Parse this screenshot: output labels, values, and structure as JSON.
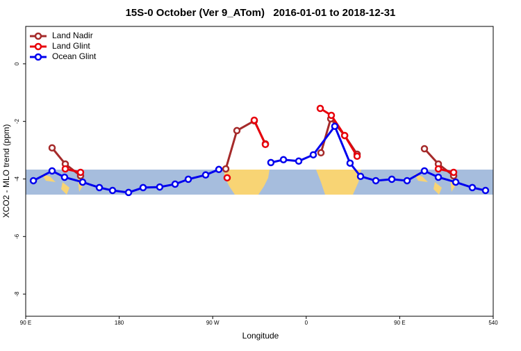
{
  "chart_data": {
    "type": "line",
    "title": "15S-0 October (Ver 9_ATom)   2016-01-01 to 2018-12-31",
    "xlabel": "Longitude",
    "ylabel": "XCO2 - MLO trend (ppm)",
    "xlim": [
      90,
      540
    ],
    "xticks": [
      {
        "value": 90,
        "label": "90 E"
      },
      180,
      {
        "value": 270,
        "label": "90 W"
      },
      {
        "value": 360,
        "label": "0"
      },
      {
        "value": 450,
        "label": "90 E"
      },
      540
    ],
    "ylim": [
      -8.77,
      1.3
    ],
    "yticks": [
      0,
      -2,
      -4,
      -6,
      -8
    ],
    "legend": "upper left",
    "series": [
      {
        "name": "Land Nadir",
        "color": "#a52a2a",
        "x": [
          115.4,
          128.1,
          142.8,
          210,
          282.6,
          293.3,
          310.0,
          320.7,
          350,
          374.2,
          383.6,
          397.0,
          409.0,
          440,
          473.8,
          487.2,
          501.9
        ],
        "values": [
          -2.92,
          -3.48,
          -3.89,
          null,
          -3.65,
          -2.32,
          -1.98,
          -2.78,
          null,
          -3.09,
          -1.91,
          -2.49,
          -3.14,
          null,
          -2.95,
          -3.48,
          -3.89
        ]
      },
      {
        "name": "Land Glint",
        "color": "#e8000b",
        "x": [
          128.1,
          142.8,
          210,
          283.9,
          297,
          310.0,
          320.7,
          350,
          373.5,
          384.2,
          397.0,
          409.0,
          440,
          487.2,
          501.9
        ],
        "values": [
          -3.65,
          -3.77,
          null,
          -3.96,
          null,
          -1.96,
          -2.8,
          null,
          -1.55,
          -1.79,
          -2.49,
          -3.21,
          null,
          -3.65,
          -3.77
        ]
      },
      {
        "name": "Ocean Glint",
        "color": "#0000ee",
        "x": [
          97.4,
          115.4,
          127.4,
          144.8,
          160.9,
          173.6,
          189.0,
          203.0,
          219.0,
          233.8,
          246.5,
          263.2,
          275.9,
          300,
          326.0,
          338.1,
          352.8,
          366.8,
          387.5,
          402.2,
          412.3,
          427.0,
          442.4,
          457.1,
          473.8,
          487.2,
          503.9,
          519.9,
          532.6
        ],
        "values": [
          -4.06,
          -3.72,
          -3.94,
          -4.11,
          -4.3,
          -4.4,
          -4.47,
          -4.3,
          -4.28,
          -4.18,
          -4.01,
          -3.86,
          -3.67,
          null,
          -3.43,
          -3.33,
          -3.38,
          -3.16,
          -2.17,
          -3.45,
          -3.91,
          -4.06,
          -4.01,
          -4.06,
          -3.72,
          -3.94,
          -4.11,
          -4.3,
          -4.4
        ]
      }
    ]
  }
}
